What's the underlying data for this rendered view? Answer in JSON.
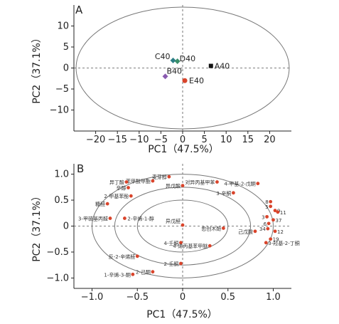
{
  "chart_data": [
    {
      "type": "scatter",
      "panel_label": "A",
      "xlabel": "PC1（47.5%）",
      "ylabel": "PC2（37.1%）",
      "xlim": [
        -25,
        25
      ],
      "ylim": [
        -15,
        15
      ],
      "xticks": [
        -20,
        -15,
        -10,
        -5,
        0,
        5,
        10,
        15,
        20
      ],
      "yticks": [
        10,
        5,
        0,
        -5,
        -10
      ],
      "ellipse": {
        "rx": 24.5,
        "ry": 14.5
      },
      "points": [
        {
          "name": "A40",
          "x": 6.5,
          "y": 0.5,
          "color": "#111111",
          "marker": "square"
        },
        {
          "name": "B40",
          "x": -4.0,
          "y": -2.0,
          "color": "#8a5bb0",
          "marker": "diamond"
        },
        {
          "name": "C40",
          "x": -2.2,
          "y": 1.8,
          "color": "#2d7f86",
          "marker": "diamond"
        },
        {
          "name": "D40",
          "x": -1.2,
          "y": 1.6,
          "color": "#3a8f6a",
          "marker": "diamond"
        },
        {
          "name": "E40",
          "x": 0.5,
          "y": -3.0,
          "color": "#d9442b",
          "marker": "circle"
        }
      ]
    },
    {
      "type": "scatter",
      "panel_label": "B",
      "xlabel": "PC1（47.5%）",
      "ylabel": "PC2（37.1%）",
      "xlim": [
        -1.2,
        1.2
      ],
      "ylim": [
        -1.2,
        1.2
      ],
      "xticks": [
        -1.0,
        -0.5,
        0,
        0.5,
        1.0
      ],
      "xtick_labels": [
        "−1.0",
        "−0.5",
        "0",
        "0.5",
        "1.0"
      ],
      "yticks": [
        1.0,
        0.5,
        0,
        -0.5,
        -1.0
      ],
      "ytick_labels": [
        "1.0",
        "0.5",
        "0",
        "−0.5",
        "−1.0"
      ],
      "ellipses": [
        1.0,
        0.75,
        0.5
      ],
      "points": [
        {
          "name": "麦芽醇",
          "x": -0.15,
          "y": 0.95
        },
        {
          "name": "苯甲酸甲酯",
          "x": -0.33,
          "y": 0.87
        },
        {
          "name": "异丁酸",
          "x": -0.62,
          "y": 0.85
        },
        {
          "name": "对异丙基甲苯",
          "x": 0.38,
          "y": 0.85
        },
        {
          "name": "4-甲基-2-戊酮",
          "x": 0.83,
          "y": 0.82
        },
        {
          "name": "异戊酸",
          "x": 0.0,
          "y": 0.78
        },
        {
          "name": "辛醇",
          "x": -0.6,
          "y": 0.74
        },
        {
          "name": "3-辛酮",
          "x": 0.56,
          "y": 0.64
        },
        {
          "name": "2-甲基苯酚",
          "x": -0.57,
          "y": 0.58
        },
        {
          "name": "糠醛",
          "x": -0.83,
          "y": 0.43
        },
        {
          "name": "3-甲硫基丙醛",
          "x": -0.8,
          "y": 0.15
        },
        {
          "name": "2-辛烯-1-醇",
          "x": -0.64,
          "y": 0.15
        },
        {
          "name": "异戊醛",
          "x": 0.0,
          "y": 0.02
        },
        {
          "name": "愈创木酚",
          "x": 0.45,
          "y": -0.04
        },
        {
          "name": "己戊酸",
          "x": 0.8,
          "y": -0.1
        },
        {
          "name": "4-壬酮",
          "x": -0.02,
          "y": -0.32
        },
        {
          "name": "4-烯丙基苯甲醚",
          "x": 0.3,
          "y": -0.38
        },
        {
          "name": "3-羟基-2-丁酮",
          "x": 0.92,
          "y": -0.32
        },
        {
          "name": "反-2-辛烯醛",
          "x": -0.5,
          "y": -0.58
        },
        {
          "name": "2-壬酮",
          "x": -0.02,
          "y": -0.72
        },
        {
          "name": "2-己酮",
          "x": -0.33,
          "y": -0.88
        },
        {
          "name": "1-辛烯-3-酮",
          "x": -0.55,
          "y": -0.93
        },
        {
          "name": "8",
          "x": 0.97,
          "y": 0.47
        },
        {
          "name": "5",
          "x": 0.97,
          "y": 0.38
        },
        {
          "name": "9",
          "x": 1.02,
          "y": 0.3
        },
        {
          "name": "11",
          "x": 1.05,
          "y": 0.27
        },
        {
          "name": "3",
          "x": 0.93,
          "y": 0.18
        },
        {
          "name": "37",
          "x": 1.0,
          "y": 0.12
        },
        {
          "name": "6",
          "x": 0.95,
          "y": 0.05
        },
        {
          "name": "34",
          "x": 0.94,
          "y": -0.05
        },
        {
          "name": "12",
          "x": 1.02,
          "y": -0.1
        },
        {
          "name": "19",
          "x": 0.97,
          "y": -0.25
        }
      ]
    }
  ],
  "colors": {
    "point": "#d9442b",
    "axis": "#222222",
    "ellipse": "#777777"
  }
}
